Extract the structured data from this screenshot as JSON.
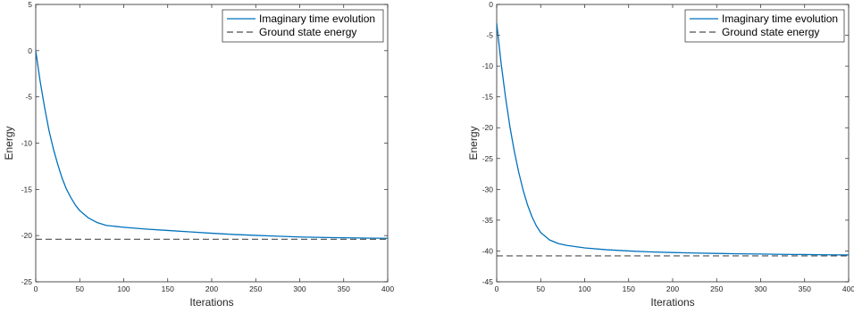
{
  "chart_data": [
    {
      "type": "line",
      "xlabel": "Iterations",
      "ylabel": "Energy",
      "xlim": [
        0,
        400
      ],
      "ylim": [
        -25,
        5
      ],
      "xticks": [
        0,
        50,
        100,
        150,
        200,
        250,
        300,
        350,
        400
      ],
      "yticks": [
        -25,
        -20,
        -15,
        -10,
        -5,
        0,
        5
      ],
      "grid": false,
      "legend_position": "top-right",
      "series": [
        {
          "name": "Imaginary time evolution",
          "style": "solid",
          "color": "#0072BD",
          "x": [
            0,
            5,
            10,
            15,
            20,
            25,
            30,
            35,
            40,
            45,
            50,
            60,
            70,
            80,
            90,
            100,
            125,
            150,
            175,
            200,
            225,
            250,
            275,
            300,
            325,
            350,
            375,
            400
          ],
          "y": [
            0.0,
            -3.3,
            -6.1,
            -8.6,
            -10.6,
            -12.3,
            -13.8,
            -15.0,
            -15.9,
            -16.7,
            -17.3,
            -18.1,
            -18.6,
            -18.9,
            -19.0,
            -19.1,
            -19.3,
            -19.45,
            -19.6,
            -19.75,
            -19.88,
            -19.98,
            -20.07,
            -20.15,
            -20.2,
            -20.24,
            -20.27,
            -20.3
          ]
        },
        {
          "name": "Ground state energy",
          "style": "dashed",
          "color": "#4D4D4D",
          "x": [
            0,
            400
          ],
          "y": [
            -20.4,
            -20.4
          ]
        }
      ]
    },
    {
      "type": "line",
      "xlabel": "Iterations",
      "ylabel": "Energy",
      "xlim": [
        0,
        400
      ],
      "ylim": [
        -45,
        0
      ],
      "xticks": [
        0,
        50,
        100,
        150,
        200,
        250,
        300,
        350,
        400
      ],
      "yticks": [
        -45,
        -40,
        -35,
        -30,
        -25,
        -20,
        -15,
        -10,
        -5,
        0
      ],
      "grid": false,
      "legend_position": "top-right",
      "series": [
        {
          "name": "Imaginary time evolution",
          "style": "solid",
          "color": "#0072BD",
          "x": [
            0,
            5,
            10,
            15,
            20,
            25,
            30,
            35,
            40,
            45,
            50,
            60,
            70,
            80,
            90,
            100,
            125,
            150,
            175,
            200,
            225,
            250,
            275,
            300,
            325,
            350,
            375,
            400
          ],
          "y": [
            -3.0,
            -9.5,
            -15.0,
            -19.8,
            -23.8,
            -27.2,
            -30.1,
            -32.5,
            -34.4,
            -35.9,
            -37.0,
            -38.2,
            -38.8,
            -39.1,
            -39.3,
            -39.5,
            -39.8,
            -40.0,
            -40.15,
            -40.25,
            -40.33,
            -40.4,
            -40.46,
            -40.5,
            -40.55,
            -40.58,
            -40.62,
            -40.65
          ]
        },
        {
          "name": "Ground state energy",
          "style": "dashed",
          "color": "#4D4D4D",
          "x": [
            0,
            400
          ],
          "y": [
            -40.8,
            -40.8
          ]
        }
      ]
    }
  ]
}
